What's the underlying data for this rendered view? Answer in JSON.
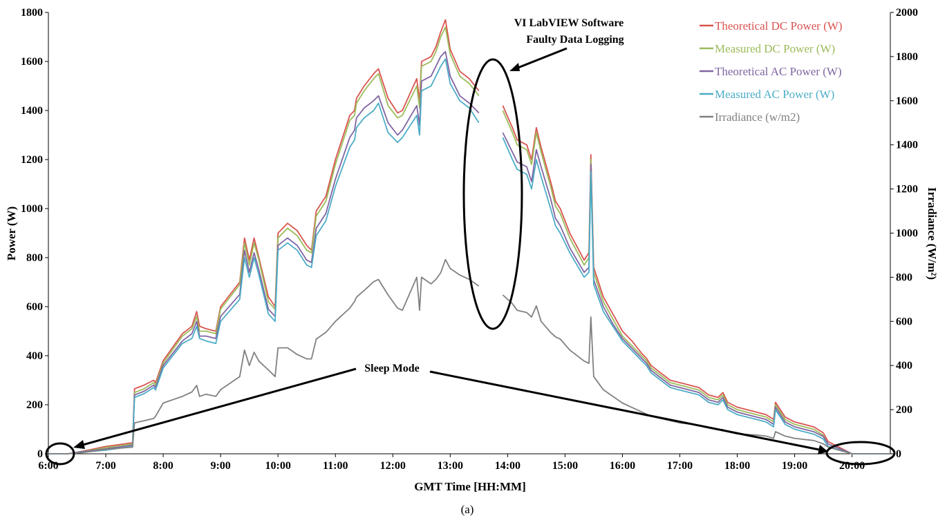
{
  "chart_data": {
    "type": "line",
    "caption": "(a)",
    "xlabel": "GMT Time [HH:MM]",
    "ylabel_left": "Power  (W)",
    "ylabel_right": "Irradiance (W/m²)",
    "ylim_left": [
      0,
      1800
    ],
    "ylim_right": [
      0,
      2000
    ],
    "xlim": [
      "6:00",
      "20:40"
    ],
    "x_ticks": [
      "6:00",
      "7:00",
      "8:00",
      "9:00",
      "10:00",
      "11:00",
      "12:00",
      "13:00",
      "14:00",
      "15:00",
      "16:00",
      "17:00",
      "18:00",
      "19:00",
      "20:00"
    ],
    "y_ticks_left": [
      0,
      200,
      400,
      600,
      800,
      1000,
      1200,
      1400,
      1600,
      1800
    ],
    "y_ticks_right": [
      0,
      200,
      400,
      600,
      800,
      1000,
      1200,
      1400,
      1600,
      1800,
      2000
    ],
    "grid": false,
    "legend_position": "top-right",
    "gap": [
      "13:30",
      "13:55"
    ],
    "time": [
      "6:00",
      "6:20",
      "6:35",
      "7:00",
      "7:28",
      "7:30",
      "7:40",
      "7:50",
      "7:52",
      "8:00",
      "8:20",
      "8:30",
      "8:35",
      "8:38",
      "8:45",
      "8:55",
      "9:00",
      "9:20",
      "9:25",
      "9:30",
      "9:35",
      "9:40",
      "9:50",
      "9:57",
      "10:00",
      "10:10",
      "10:20",
      "10:30",
      "10:35",
      "10:40",
      "10:50",
      "11:00",
      "11:15",
      "11:20",
      "11:22",
      "11:30",
      "11:40",
      "11:45",
      "11:55",
      "12:05",
      "12:10",
      "12:25",
      "12:28",
      "12:30",
      "12:40",
      "12:45",
      "12:50",
      "12:55",
      "13:00",
      "13:10",
      "13:20",
      "13:30",
      "13:55",
      "14:05",
      "14:10",
      "14:20",
      "14:25",
      "14:30",
      "14:35",
      "14:45",
      "14:50",
      "14:55",
      "15:05",
      "15:20",
      "15:25",
      "15:27",
      "15:30",
      "15:40",
      "15:50",
      "16:00",
      "16:10",
      "16:20",
      "16:25",
      "16:30",
      "16:40",
      "16:50",
      "17:00",
      "17:20",
      "17:30",
      "17:40",
      "17:45",
      "17:50",
      "18:00",
      "18:20",
      "18:30",
      "18:38",
      "18:40",
      "18:50",
      "19:00",
      "19:20",
      "19:30",
      "19:35",
      "20:00",
      "20:40"
    ],
    "series": [
      {
        "name": "Theoretical DC Power (W)",
        "axis": "left",
        "color": "#D9534F",
        "values": [
          0,
          0,
          10,
          30,
          45,
          265,
          280,
          300,
          290,
          380,
          490,
          520,
          580,
          520,
          510,
          500,
          600,
          700,
          880,
          790,
          880,
          800,
          640,
          600,
          900,
          940,
          910,
          850,
          830,
          990,
          1050,
          1200,
          1380,
          1400,
          1450,
          1500,
          1550,
          1570,
          1450,
          1390,
          1400,
          1530,
          1440,
          1600,
          1620,
          1660,
          1720,
          1770,
          1650,
          1560,
          1530,
          1480,
          1420,
          1330,
          1280,
          1260,
          1200,
          1330,
          1250,
          1110,
          1030,
          1000,
          900,
          790,
          820,
          1220,
          760,
          640,
          570,
          500,
          460,
          410,
          390,
          360,
          330,
          300,
          290,
          270,
          240,
          230,
          250,
          210,
          190,
          170,
          160,
          140,
          210,
          150,
          130,
          110,
          85,
          50,
          0,
          0
        ]
      },
      {
        "name": "Measured DC Power (W)",
        "axis": "left",
        "color": "#9BBB59",
        "values": [
          0,
          0,
          8,
          25,
          40,
          250,
          265,
          290,
          280,
          370,
          480,
          510,
          560,
          500,
          500,
          490,
          590,
          690,
          860,
          770,
          860,
          790,
          620,
          590,
          880,
          920,
          890,
          830,
          820,
          970,
          1030,
          1180,
          1360,
          1380,
          1430,
          1480,
          1530,
          1550,
          1420,
          1370,
          1380,
          1500,
          1410,
          1580,
          1600,
          1640,
          1700,
          1740,
          1630,
          1540,
          1510,
          1460,
          1400,
          1310,
          1260,
          1240,
          1180,
          1310,
          1230,
          1090,
          1010,
          980,
          880,
          770,
          800,
          1200,
          740,
          620,
          550,
          480,
          440,
          400,
          380,
          350,
          320,
          290,
          280,
          260,
          230,
          220,
          240,
          200,
          180,
          160,
          150,
          130,
          200,
          140,
          120,
          100,
          75,
          40,
          0,
          0
        ]
      },
      {
        "name": "Theoretical AC Power (W)",
        "axis": "left",
        "color": "#8064A2",
        "values": [
          0,
          0,
          8,
          20,
          35,
          240,
          255,
          280,
          270,
          360,
          460,
          490,
          540,
          480,
          480,
          470,
          560,
          650,
          830,
          740,
          820,
          750,
          590,
          560,
          850,
          880,
          850,
          790,
          780,
          920,
          980,
          1120,
          1290,
          1320,
          1370,
          1410,
          1440,
          1460,
          1350,
          1300,
          1320,
          1420,
          1340,
          1520,
          1540,
          1580,
          1620,
          1640,
          1540,
          1460,
          1430,
          1390,
          1310,
          1230,
          1190,
          1170,
          1110,
          1240,
          1170,
          1040,
          960,
          930,
          840,
          740,
          760,
          1180,
          710,
          600,
          530,
          470,
          430,
          390,
          370,
          340,
          310,
          280,
          270,
          250,
          220,
          210,
          230,
          190,
          170,
          150,
          140,
          120,
          190,
          130,
          110,
          90,
          70,
          40,
          0,
          0
        ]
      },
      {
        "name": "Measured AC Power (W)",
        "axis": "left",
        "color": "#4BACC6",
        "values": [
          0,
          0,
          6,
          15,
          30,
          230,
          245,
          270,
          260,
          350,
          450,
          470,
          520,
          470,
          460,
          450,
          540,
          630,
          800,
          720,
          800,
          730,
          570,
          540,
          830,
          860,
          830,
          770,
          760,
          890,
          950,
          1090,
          1250,
          1280,
          1330,
          1370,
          1400,
          1430,
          1310,
          1270,
          1290,
          1380,
          1300,
          1480,
          1500,
          1540,
          1580,
          1610,
          1510,
          1440,
          1410,
          1350,
          1290,
          1200,
          1160,
          1140,
          1080,
          1200,
          1130,
          1000,
          930,
          900,
          820,
          720,
          740,
          1150,
          690,
          580,
          520,
          460,
          420,
          380,
          360,
          330,
          300,
          270,
          260,
          240,
          210,
          200,
          220,
          180,
          160,
          140,
          130,
          110,
          180,
          120,
          100,
          80,
          60,
          30,
          0,
          0
        ]
      },
      {
        "name": "Irradiance (w/m2)",
        "axis": "right",
        "color": "#808080",
        "values": [
          0,
          0,
          5,
          20,
          30,
          140,
          150,
          160,
          170,
          230,
          260,
          280,
          310,
          260,
          270,
          260,
          290,
          350,
          470,
          400,
          460,
          420,
          380,
          350,
          480,
          480,
          450,
          430,
          430,
          520,
          550,
          600,
          660,
          690,
          710,
          740,
          780,
          790,
          720,
          660,
          650,
          800,
          650,
          800,
          770,
          790,
          820,
          880,
          840,
          810,
          790,
          760,
          720,
          680,
          650,
          640,
          620,
          670,
          600,
          550,
          530,
          520,
          470,
          420,
          410,
          620,
          350,
          290,
          260,
          230,
          210,
          190,
          180,
          170,
          160,
          150,
          140,
          130,
          120,
          110,
          110,
          100,
          90,
          85,
          80,
          70,
          100,
          80,
          70,
          60,
          45,
          30,
          0,
          0
        ]
      }
    ],
    "annotations": [
      {
        "text": "VI LabVIEW Software",
        "line2": "Faulty Data Logging"
      },
      {
        "text": "Sleep Mode"
      }
    ]
  }
}
